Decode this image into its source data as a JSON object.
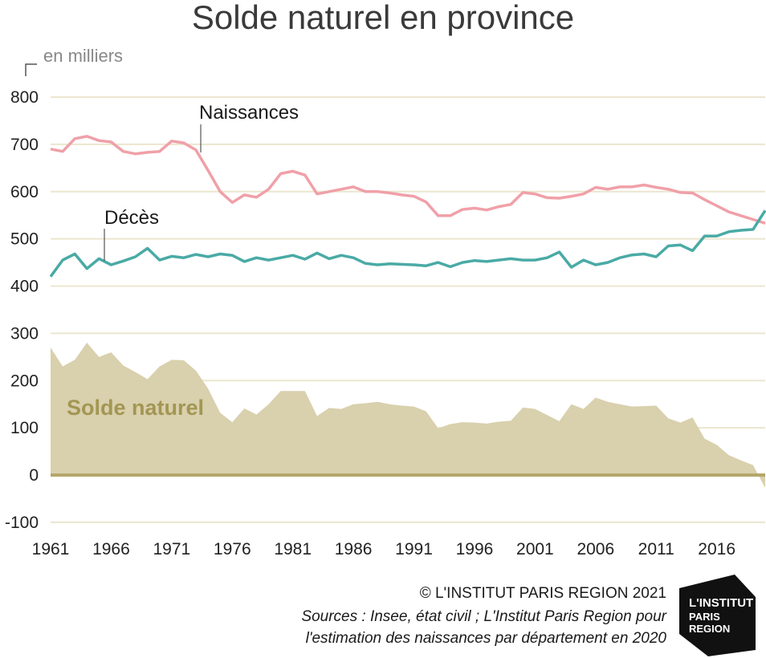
{
  "chart_data": {
    "type": "line",
    "title": "Solde naturel en province",
    "unit_label": "en milliers",
    "ylim": [
      -100,
      800
    ],
    "yticks": [
      800,
      700,
      600,
      500,
      400,
      300,
      200,
      100,
      0,
      -100
    ],
    "xlim": [
      1961,
      2020
    ],
    "xticks": [
      1961,
      1966,
      1971,
      1976,
      1981,
      1986,
      1991,
      1996,
      2001,
      2006,
      2011,
      2016
    ],
    "grid": true,
    "x": [
      1961,
      1962,
      1963,
      1964,
      1965,
      1966,
      1967,
      1968,
      1969,
      1970,
      1971,
      1972,
      1973,
      1974,
      1975,
      1976,
      1977,
      1978,
      1979,
      1980,
      1981,
      1982,
      1983,
      1984,
      1985,
      1986,
      1987,
      1988,
      1989,
      1990,
      1991,
      1992,
      1993,
      1994,
      1995,
      1996,
      1997,
      1998,
      1999,
      2000,
      2001,
      2002,
      2003,
      2004,
      2005,
      2006,
      2007,
      2008,
      2009,
      2010,
      2011,
      2012,
      2013,
      2014,
      2015,
      2016,
      2017,
      2018,
      2019,
      2020
    ],
    "series": [
      {
        "name": "Naissances",
        "color": "#f0a0a8",
        "values": [
          690,
          685,
          712,
          717,
          708,
          705,
          685,
          680,
          683,
          685,
          707,
          703,
          688,
          645,
          600,
          577,
          593,
          588,
          605,
          638,
          643,
          635,
          595,
          600,
          605,
          610,
          600,
          600,
          597,
          593,
          590,
          578,
          549,
          549,
          562,
          565,
          561,
          568,
          573,
          598,
          595,
          587,
          586,
          590,
          595,
          609,
          605,
          610,
          610,
          614,
          609,
          605,
          598,
          597,
          583,
          570,
          557,
          549,
          541,
          533
        ]
      },
      {
        "name": "Décès",
        "color": "#4aaaa5",
        "values": [
          420,
          455,
          468,
          437,
          458,
          445,
          453,
          462,
          480,
          455,
          463,
          460,
          467,
          462,
          468,
          465,
          452,
          460,
          455,
          460,
          465,
          457,
          470,
          458,
          465,
          460,
          448,
          445,
          447,
          446,
          445,
          443,
          450,
          441,
          450,
          454,
          452,
          455,
          458,
          455,
          455,
          460,
          472,
          440,
          455,
          445,
          450,
          460,
          466,
          468,
          462,
          485,
          487,
          475,
          506,
          506,
          515,
          518,
          520,
          560
        ]
      },
      {
        "name": "Solde naturel",
        "color": "#d9d0ad",
        "values": [
          270,
          230,
          244,
          280,
          250,
          260,
          232,
          218,
          203,
          230,
          244,
          243,
          221,
          183,
          132,
          112,
          141,
          128,
          150,
          178,
          178,
          178,
          125,
          142,
          140,
          150,
          152,
          155,
          150,
          147,
          145,
          135,
          99,
          108,
          112,
          111,
          109,
          113,
          115,
          143,
          140,
          127,
          114,
          150,
          140,
          164,
          155,
          150,
          145,
          146,
          147,
          120,
          111,
          122,
          77,
          64,
          42,
          31,
          21,
          -27
        ]
      }
    ],
    "annotations": {
      "naissances": "Naissances",
      "deces": "Décès",
      "solde": "Solde naturel"
    }
  },
  "footer": {
    "copyright": "© L'INSTITUT PARIS REGION 2021",
    "source_line1": "Sources :  Insee, état civil ; L'Institut Paris Region pour",
    "source_line2": "l'estimation des naissances par département en 2020"
  },
  "logo": {
    "line1": "L'INSTITUT",
    "line2": "PARIS",
    "line3": "REGION"
  }
}
